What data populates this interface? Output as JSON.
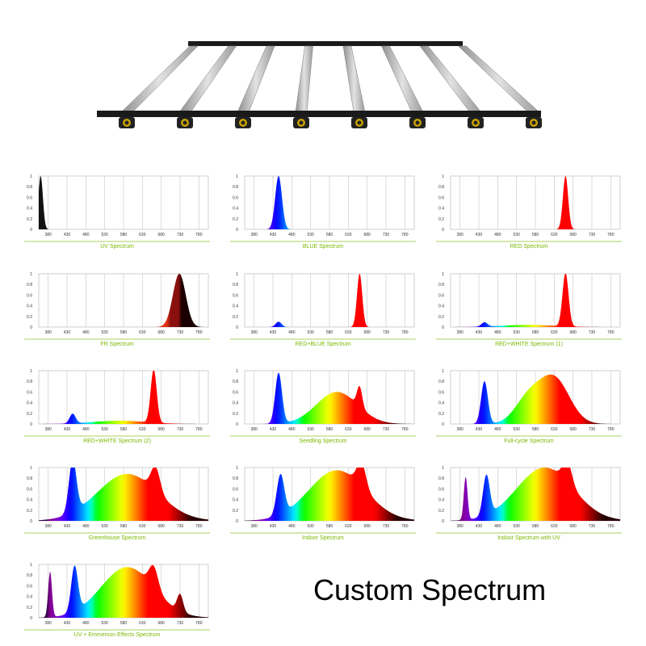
{
  "product": {
    "illustration_icon": "grow-light-fixture-icon",
    "bar_count": 8,
    "bar_color": "#b9b9b9",
    "frame_color": "#1a1a1a"
  },
  "custom_title": "Custom Spectrum",
  "style": {
    "title_color": "#7ab800",
    "grid_color": "#bbbbbb",
    "axis_color": "#a8d060"
  },
  "chart_data": [
    {
      "type": "area",
      "title": "UV Spectrum",
      "x_ticks": [
        "380",
        "430",
        "480",
        "530",
        "580",
        "630",
        "680",
        "730",
        "780"
      ],
      "y_ticks": [
        "1",
        "0.8",
        "0.6",
        "0.4",
        "0.2",
        "0"
      ],
      "xlim": [
        355,
        805
      ],
      "ylim": [
        0,
        1
      ],
      "gradient": "dark",
      "peaks": [
        {
          "c": 360,
          "h": 1.0,
          "w": 6
        }
      ]
    },
    {
      "type": "area",
      "title": "BLUE Spectrum",
      "x_ticks": [
        "380",
        "430",
        "480",
        "530",
        "580",
        "630",
        "680",
        "730",
        "780"
      ],
      "y_ticks": [
        "1",
        "0.8",
        "0.6",
        "0.4",
        "0.2",
        "0"
      ],
      "xlim": [
        355,
        805
      ],
      "ylim": [
        0,
        1
      ],
      "gradient": "spectrum",
      "peaks": [
        {
          "c": 445,
          "h": 1.0,
          "w": 9
        }
      ]
    },
    {
      "type": "area",
      "title": "RED Spectrum",
      "x_ticks": [
        "380",
        "430",
        "480",
        "530",
        "580",
        "630",
        "680",
        "730",
        "780"
      ],
      "y_ticks": [
        "1",
        "0.8",
        "0.6",
        "0.4",
        "0.2",
        "0"
      ],
      "xlim": [
        355,
        805
      ],
      "ylim": [
        0,
        1
      ],
      "gradient": "spectrum",
      "peaks": [
        {
          "c": 660,
          "h": 1.0,
          "w": 7
        }
      ]
    },
    {
      "type": "area",
      "title": "FR Spectrum",
      "x_ticks": [
        "380",
        "430",
        "480",
        "530",
        "580",
        "630",
        "680",
        "730",
        "780"
      ],
      "y_ticks": [
        "1",
        "0.8",
        "0.6",
        "0.4",
        "0.2",
        "0"
      ],
      "xlim": [
        355,
        805
      ],
      "ylim": [
        0,
        1
      ],
      "gradient": "farred",
      "peaks": [
        {
          "c": 728,
          "h": 1.0,
          "w": 17
        }
      ]
    },
    {
      "type": "area",
      "title": "RED+BLUE Spectrum",
      "x_ticks": [
        "380",
        "430",
        "480",
        "530",
        "580",
        "630",
        "680",
        "730",
        "780"
      ],
      "y_ticks": [
        "1",
        "0.8",
        "0.6",
        "0.4",
        "0.2",
        "0"
      ],
      "xlim": [
        355,
        805
      ],
      "ylim": [
        0,
        1
      ],
      "gradient": "spectrum",
      "peaks": [
        {
          "c": 445,
          "h": 0.1,
          "w": 8
        },
        {
          "c": 660,
          "h": 1.0,
          "w": 7
        }
      ]
    },
    {
      "type": "area",
      "title": "RED+WHITE Spectrum (1)",
      "x_ticks": [
        "380",
        "430",
        "480",
        "530",
        "580",
        "630",
        "680",
        "730",
        "780"
      ],
      "y_ticks": [
        "1",
        "0.8",
        "0.6",
        "0.4",
        "0.2",
        "0"
      ],
      "xlim": [
        355,
        805
      ],
      "ylim": [
        0,
        1
      ],
      "gradient": "spectrum",
      "peaks": [
        {
          "c": 445,
          "h": 0.08,
          "w": 8
        },
        {
          "c": 560,
          "h": 0.04,
          "w": 70
        },
        {
          "c": 660,
          "h": 1.0,
          "w": 8
        }
      ]
    },
    {
      "type": "area",
      "title": "RED+WHITE Spectrum (2)",
      "x_ticks": [
        "380",
        "430",
        "480",
        "530",
        "580",
        "630",
        "680",
        "730",
        "780"
      ],
      "y_ticks": [
        "1",
        "0.8",
        "0.6",
        "0.4",
        "0.2",
        "0"
      ],
      "xlim": [
        355,
        805
      ],
      "ylim": [
        0,
        1
      ],
      "gradient": "spectrum",
      "peaks": [
        {
          "c": 445,
          "h": 0.18,
          "w": 8
        },
        {
          "c": 570,
          "h": 0.06,
          "w": 70
        },
        {
          "c": 660,
          "h": 1.0,
          "w": 8
        }
      ]
    },
    {
      "type": "area",
      "title": "Seedling Spectrum",
      "x_ticks": [
        "380",
        "430",
        "480",
        "530",
        "580",
        "630",
        "680",
        "730",
        "780"
      ],
      "y_ticks": [
        "1",
        "0.8",
        "0.6",
        "0.4",
        "0.2",
        "0"
      ],
      "xlim": [
        355,
        805
      ],
      "ylim": [
        0,
        1
      ],
      "gradient": "spectrum",
      "peaks": [
        {
          "c": 445,
          "h": 0.95,
          "w": 9
        },
        {
          "c": 600,
          "h": 0.6,
          "w": 55
        },
        {
          "c": 660,
          "h": 0.38,
          "w": 7
        }
      ]
    },
    {
      "type": "area",
      "title": "Full-cycle Spectrum",
      "x_ticks": [
        "380",
        "430",
        "480",
        "530",
        "580",
        "630",
        "680",
        "730",
        "780"
      ],
      "y_ticks": [
        "1",
        "0.8",
        "0.6",
        "0.4",
        "0.2",
        "0"
      ],
      "xlim": [
        355,
        805
      ],
      "ylim": [
        0,
        1
      ],
      "gradient": "spectrum",
      "peaks": [
        {
          "c": 445,
          "h": 0.8,
          "w": 9
        },
        {
          "c": 560,
          "h": 0.45,
          "w": 35
        },
        {
          "c": 630,
          "h": 0.85,
          "w": 40
        }
      ]
    },
    {
      "type": "area",
      "title": "Greenhouse Spectrum",
      "x_ticks": [
        "380",
        "430",
        "480",
        "530",
        "580",
        "630",
        "680",
        "730",
        "780"
      ],
      "y_ticks": [
        "1",
        "0.8",
        "0.6",
        "0.4",
        "0.2",
        "0"
      ],
      "xlim": [
        355,
        805
      ],
      "ylim": [
        0,
        1
      ],
      "gradient": "spectrum",
      "peaks": [
        {
          "c": 445,
          "h": 0.98,
          "w": 10
        },
        {
          "c": 590,
          "h": 0.88,
          "w": 80
        },
        {
          "c": 665,
          "h": 0.45,
          "w": 12
        }
      ]
    },
    {
      "type": "area",
      "title": "Indoor Spectrum",
      "x_ticks": [
        "380",
        "430",
        "480",
        "530",
        "580",
        "630",
        "680",
        "730",
        "780"
      ],
      "y_ticks": [
        "1",
        "0.8",
        "0.6",
        "0.4",
        "0.2",
        "0"
      ],
      "xlim": [
        355,
        805
      ],
      "ylim": [
        0,
        1
      ],
      "gradient": "spectrum",
      "peaks": [
        {
          "c": 450,
          "h": 0.75,
          "w": 10
        },
        {
          "c": 600,
          "h": 0.95,
          "w": 75
        },
        {
          "c": 665,
          "h": 0.45,
          "w": 12
        }
      ]
    },
    {
      "type": "area",
      "title": "Indoor Spectrum with UV",
      "x_ticks": [
        "380",
        "430",
        "480",
        "530",
        "580",
        "630",
        "680",
        "730",
        "780"
      ],
      "y_ticks": [
        "1",
        "0.8",
        "0.6",
        "0.4",
        "0.2",
        "0"
      ],
      "xlim": [
        355,
        805
      ],
      "ylim": [
        0,
        1
      ],
      "gradient": "spectrum",
      "peaks": [
        {
          "c": 395,
          "h": 0.8,
          "w": 5
        },
        {
          "c": 450,
          "h": 0.75,
          "w": 9
        },
        {
          "c": 605,
          "h": 1.0,
          "w": 75
        },
        {
          "c": 665,
          "h": 0.4,
          "w": 12
        }
      ]
    },
    {
      "type": "area",
      "title": "UV + Emmerson Effects Spectrum",
      "x_ticks": [
        "380",
        "430",
        "480",
        "530",
        "580",
        "630",
        "680",
        "730",
        "780"
      ],
      "y_ticks": [
        "1",
        "0.8",
        "0.6",
        "0.4",
        "0.2",
        "0"
      ],
      "xlim": [
        355,
        805
      ],
      "ylim": [
        0,
        1
      ],
      "gradient": "spectrum",
      "peaks": [
        {
          "c": 385,
          "h": 0.85,
          "w": 5
        },
        {
          "c": 450,
          "h": 0.85,
          "w": 9
        },
        {
          "c": 590,
          "h": 0.95,
          "w": 70
        },
        {
          "c": 660,
          "h": 0.4,
          "w": 12
        },
        {
          "c": 730,
          "h": 0.32,
          "w": 8
        }
      ]
    }
  ]
}
